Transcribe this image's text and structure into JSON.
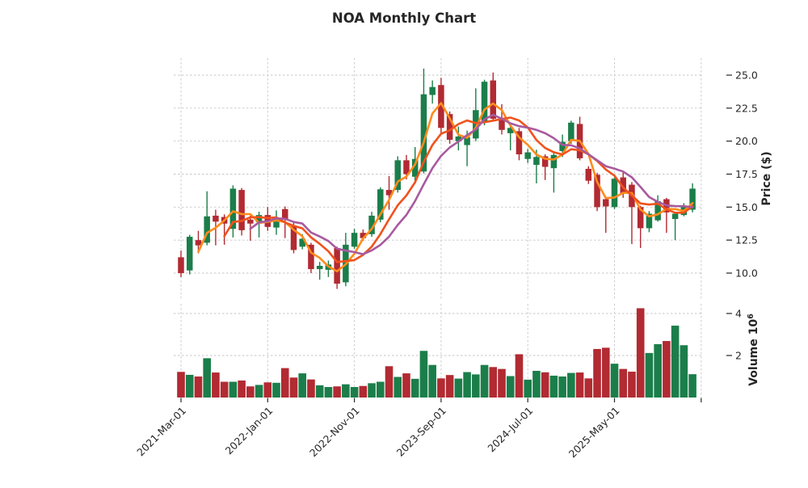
{
  "chart_data": {
    "type": "candlestick_volume",
    "title": "NOA Monthly Chart",
    "price_axis": {
      "label": "Price ($)",
      "side": "right",
      "ticks": [
        10.0,
        12.5,
        15.0,
        17.5,
        20.0,
        22.5,
        25.0
      ]
    },
    "volume_axis": {
      "label": "Volume",
      "unit_base": "10",
      "unit_exponent": "6",
      "ticks": [
        2,
        4
      ]
    },
    "x_axis": {
      "tick_indices": [
        0,
        10,
        20,
        30,
        40,
        50
      ],
      "tick_labels": [
        "2021-Mar-01",
        "2022-Jan-01",
        "2022-Nov-01",
        "2023-Sep-01",
        "2024-Jul-01",
        "2025-May-01"
      ],
      "edge_tick_index": 60
    },
    "moving_averages": [
      {
        "name": "SMA3",
        "window": 3,
        "color": "#ff8b1c"
      },
      {
        "name": "SMA6",
        "window": 6,
        "color": "#f1521c"
      },
      {
        "name": "SMA9",
        "window": 9,
        "color": "#a85a9e"
      }
    ],
    "colors": {
      "up": "#1b7e4a",
      "down": "#b22a32",
      "grid": "#c6c6c6",
      "text": "#262626",
      "background": "#ffffff"
    },
    "grid": true,
    "legend_position": "none",
    "ylim_price": [
      8.0,
      26.5
    ],
    "ylim_volume_millions": [
      0,
      4.5
    ],
    "candles": [
      {
        "date": "2021-03",
        "o": 11.2,
        "h": 11.7,
        "l": 9.7,
        "c": 10.0,
        "v": 1.22
      },
      {
        "date": "2021-04",
        "o": 10.2,
        "h": 12.9,
        "l": 9.9,
        "c": 12.75,
        "v": 1.08
      },
      {
        "date": "2021-05",
        "o": 12.5,
        "h": 13.2,
        "l": 11.5,
        "c": 12.1,
        "v": 1.0
      },
      {
        "date": "2021-06",
        "o": 12.3,
        "h": 16.2,
        "l": 12.1,
        "c": 14.3,
        "v": 1.87
      },
      {
        "date": "2021-07",
        "o": 14.35,
        "h": 14.8,
        "l": 12.1,
        "c": 13.9,
        "v": 1.19
      },
      {
        "date": "2021-08",
        "o": 14.25,
        "h": 14.45,
        "l": 12.15,
        "c": 13.75,
        "v": 0.75
      },
      {
        "date": "2021-09",
        "o": 13.35,
        "h": 16.65,
        "l": 12.7,
        "c": 16.4,
        "v": 0.75
      },
      {
        "date": "2021-10",
        "o": 16.3,
        "h": 16.45,
        "l": 12.85,
        "c": 13.25,
        "v": 0.81
      },
      {
        "date": "2021-11",
        "o": 14.05,
        "h": 14.35,
        "l": 12.45,
        "c": 13.75,
        "v": 0.53
      },
      {
        "date": "2021-12",
        "o": 13.85,
        "h": 14.65,
        "l": 12.7,
        "c": 14.4,
        "v": 0.6
      },
      {
        "date": "2022-01",
        "o": 14.4,
        "h": 15.0,
        "l": 13.2,
        "c": 13.5,
        "v": 0.72
      },
      {
        "date": "2022-02",
        "o": 13.45,
        "h": 14.75,
        "l": 12.9,
        "c": 14.05,
        "v": 0.7
      },
      {
        "date": "2022-03",
        "o": 14.85,
        "h": 15.05,
        "l": 12.65,
        "c": 14.05,
        "v": 1.4
      },
      {
        "date": "2022-04",
        "o": 13.55,
        "h": 13.9,
        "l": 11.5,
        "c": 11.75,
        "v": 0.95
      },
      {
        "date": "2022-05",
        "o": 12.0,
        "h": 12.95,
        "l": 11.8,
        "c": 12.6,
        "v": 1.15
      },
      {
        "date": "2022-06",
        "o": 12.15,
        "h": 12.3,
        "l": 10.0,
        "c": 10.3,
        "v": 0.86
      },
      {
        "date": "2022-07",
        "o": 10.3,
        "h": 10.85,
        "l": 9.5,
        "c": 10.55,
        "v": 0.58
      },
      {
        "date": "2022-08",
        "o": 10.25,
        "h": 10.95,
        "l": 9.7,
        "c": 10.65,
        "v": 0.5
      },
      {
        "date": "2022-09",
        "o": 11.9,
        "h": 12.0,
        "l": 8.8,
        "c": 9.2,
        "v": 0.53
      },
      {
        "date": "2022-10",
        "o": 9.3,
        "h": 13.05,
        "l": 9.0,
        "c": 12.15,
        "v": 0.63
      },
      {
        "date": "2022-11",
        "o": 12.0,
        "h": 13.35,
        "l": 11.85,
        "c": 13.05,
        "v": 0.5
      },
      {
        "date": "2022-12",
        "o": 13.05,
        "h": 13.3,
        "l": 12.45,
        "c": 12.65,
        "v": 0.55
      },
      {
        "date": "2023-01",
        "o": 12.95,
        "h": 14.65,
        "l": 12.75,
        "c": 14.35,
        "v": 0.68
      },
      {
        "date": "2023-02",
        "o": 14.05,
        "h": 16.5,
        "l": 13.85,
        "c": 16.35,
        "v": 0.75
      },
      {
        "date": "2023-03",
        "o": 16.3,
        "h": 17.35,
        "l": 14.8,
        "c": 15.9,
        "v": 1.49
      },
      {
        "date": "2023-04",
        "o": 16.3,
        "h": 18.85,
        "l": 16.1,
        "c": 18.55,
        "v": 0.98
      },
      {
        "date": "2023-05",
        "o": 18.55,
        "h": 18.95,
        "l": 17.1,
        "c": 17.5,
        "v": 1.15
      },
      {
        "date": "2023-06",
        "o": 17.3,
        "h": 19.55,
        "l": 17.0,
        "c": 18.65,
        "v": 0.89
      },
      {
        "date": "2023-07",
        "o": 17.7,
        "h": 25.5,
        "l": 17.55,
        "c": 23.55,
        "v": 2.22
      },
      {
        "date": "2023-08",
        "o": 23.5,
        "h": 24.6,
        "l": 22.85,
        "c": 24.1,
        "v": 1.55
      },
      {
        "date": "2023-09",
        "o": 24.25,
        "h": 24.8,
        "l": 20.5,
        "c": 21.0,
        "v": 0.91
      },
      {
        "date": "2023-10",
        "o": 22.05,
        "h": 22.25,
        "l": 19.8,
        "c": 20.1,
        "v": 1.07
      },
      {
        "date": "2023-11",
        "o": 20.0,
        "h": 21.1,
        "l": 19.3,
        "c": 20.35,
        "v": 0.9
      },
      {
        "date": "2023-12",
        "o": 19.7,
        "h": 20.8,
        "l": 18.1,
        "c": 20.3,
        "v": 1.21
      },
      {
        "date": "2024-01",
        "o": 20.2,
        "h": 24.0,
        "l": 20.0,
        "c": 22.35,
        "v": 1.1
      },
      {
        "date": "2024-02",
        "o": 21.4,
        "h": 24.65,
        "l": 21.2,
        "c": 24.5,
        "v": 1.55
      },
      {
        "date": "2024-03",
        "o": 24.6,
        "h": 25.2,
        "l": 21.5,
        "c": 21.7,
        "v": 1.45
      },
      {
        "date": "2024-04",
        "o": 21.7,
        "h": 22.8,
        "l": 20.5,
        "c": 20.85,
        "v": 1.36
      },
      {
        "date": "2024-05",
        "o": 20.6,
        "h": 21.25,
        "l": 19.3,
        "c": 21.0,
        "v": 1.02
      },
      {
        "date": "2024-06",
        "o": 20.75,
        "h": 21.0,
        "l": 18.55,
        "c": 19.0,
        "v": 2.06
      },
      {
        "date": "2024-07",
        "o": 18.65,
        "h": 19.4,
        "l": 18.35,
        "c": 19.15,
        "v": 0.85
      },
      {
        "date": "2024-08",
        "o": 18.2,
        "h": 19.35,
        "l": 16.8,
        "c": 18.8,
        "v": 1.27
      },
      {
        "date": "2024-09",
        "o": 18.85,
        "h": 19.0,
        "l": 17.05,
        "c": 18.05,
        "v": 1.2
      },
      {
        "date": "2024-10",
        "o": 17.95,
        "h": 19.1,
        "l": 16.1,
        "c": 18.95,
        "v": 1.04
      },
      {
        "date": "2024-11",
        "o": 19.25,
        "h": 20.5,
        "l": 18.8,
        "c": 19.95,
        "v": 1.0
      },
      {
        "date": "2024-12",
        "o": 20.0,
        "h": 21.55,
        "l": 19.8,
        "c": 21.4,
        "v": 1.17
      },
      {
        "date": "2025-01",
        "o": 21.3,
        "h": 21.85,
        "l": 18.55,
        "c": 18.7,
        "v": 1.19
      },
      {
        "date": "2025-02",
        "o": 17.9,
        "h": 18.1,
        "l": 16.75,
        "c": 17.0,
        "v": 0.91
      },
      {
        "date": "2025-03",
        "o": 17.45,
        "h": 17.6,
        "l": 14.7,
        "c": 15.0,
        "v": 2.31
      },
      {
        "date": "2025-04",
        "o": 15.6,
        "h": 15.8,
        "l": 13.05,
        "c": 15.05,
        "v": 2.37
      },
      {
        "date": "2025-05",
        "o": 15.0,
        "h": 17.25,
        "l": 14.85,
        "c": 17.15,
        "v": 1.61
      },
      {
        "date": "2025-06",
        "o": 17.25,
        "h": 17.7,
        "l": 15.7,
        "c": 16.05,
        "v": 1.36
      },
      {
        "date": "2025-07",
        "o": 16.7,
        "h": 16.9,
        "l": 12.2,
        "c": 15.0,
        "v": 1.23
      },
      {
        "date": "2025-08",
        "o": 15.0,
        "h": 15.1,
        "l": 11.9,
        "c": 13.4,
        "v": 4.25
      },
      {
        "date": "2025-09",
        "o": 13.4,
        "h": 14.7,
        "l": 13.1,
        "c": 14.5,
        "v": 2.12
      },
      {
        "date": "2025-10",
        "o": 14.0,
        "h": 15.9,
        "l": 13.9,
        "c": 15.45,
        "v": 2.54
      },
      {
        "date": "2025-11",
        "o": 15.6,
        "h": 15.7,
        "l": 13.05,
        "c": 14.6,
        "v": 2.69
      },
      {
        "date": "2025-12",
        "o": 14.1,
        "h": 14.6,
        "l": 12.5,
        "c": 14.5,
        "v": 3.42
      },
      {
        "date": "2026-01",
        "o": 14.4,
        "h": 15.3,
        "l": 14.3,
        "c": 15.0,
        "v": 2.49
      },
      {
        "date": "2026-02",
        "o": 14.8,
        "h": 16.8,
        "l": 14.6,
        "c": 16.4,
        "v": 1.11
      }
    ]
  }
}
